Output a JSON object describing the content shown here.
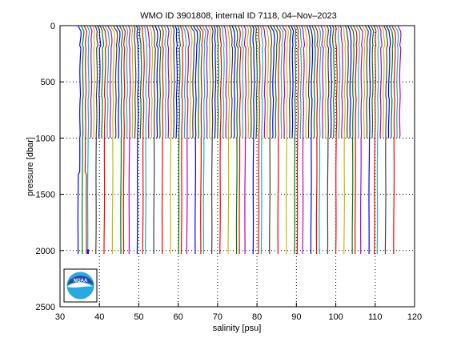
{
  "chart_data": {
    "type": "line",
    "title": "WMO ID 3901808, internal ID 7118, 04–Nov–2023",
    "xlabel": "salinity [psu]",
    "ylabel": "pressure [dbar]",
    "xlim": [
      30,
      120
    ],
    "ylim": [
      0,
      2500
    ],
    "y_reversed": true,
    "grid": true,
    "x_ticks": [
      "30",
      "40",
      "50",
      "60",
      "70",
      "80",
      "90",
      "100",
      "110",
      "120"
    ],
    "y_ticks": [
      "0",
      "500",
      "1000",
      "1500",
      "2000",
      "2500"
    ],
    "profiles": {
      "count": 118,
      "offset_step_psu": 0.7,
      "first_offset_psu": 35.0,
      "base_salinity_psu": 35.0,
      "deep_pressure_dbar": 2030,
      "shallow_pressure_dbar": 1000,
      "deep_profile_every": 3,
      "colors": [
        "#0000ff",
        "#008000",
        "#ff0000",
        "#00bfbf",
        "#bf00bf",
        "#bfbf00",
        "#404040"
      ]
    },
    "logo": {
      "name": "NOAA",
      "colors": [
        "#1f4aa8",
        "#27a9e1",
        "#ffffff"
      ]
    }
  }
}
